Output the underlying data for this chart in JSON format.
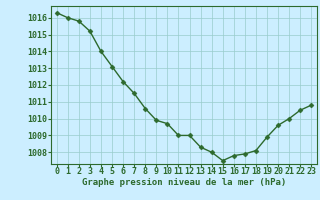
{
  "x": [
    0,
    1,
    2,
    3,
    4,
    5,
    6,
    7,
    8,
    9,
    10,
    11,
    12,
    13,
    14,
    15,
    16,
    17,
    18,
    19,
    20,
    21,
    22,
    23
  ],
  "y": [
    1016.3,
    1016.0,
    1015.8,
    1015.2,
    1014.0,
    1013.1,
    1012.2,
    1011.5,
    1010.6,
    1009.9,
    1009.7,
    1009.0,
    1009.0,
    1008.3,
    1008.0,
    1007.5,
    1007.8,
    1007.9,
    1008.1,
    1008.9,
    1009.6,
    1010.0,
    1010.5,
    1010.8
  ],
  "line_color": "#2d6a2d",
  "marker_color": "#2d6a2d",
  "bg_color": "#cceeff",
  "grid_color": "#99cccc",
  "xlabel": "Graphe pression niveau de la mer (hPa)",
  "xlabel_color": "#2d6a2d",
  "tick_color": "#2d6a2d",
  "spine_color": "#2d6a2d",
  "ylim": [
    1007.3,
    1016.7
  ],
  "yticks": [
    1008,
    1009,
    1010,
    1011,
    1012,
    1013,
    1014,
    1015,
    1016
  ],
  "xticks": [
    0,
    1,
    2,
    3,
    4,
    5,
    6,
    7,
    8,
    9,
    10,
    11,
    12,
    13,
    14,
    15,
    16,
    17,
    18,
    19,
    20,
    21,
    22,
    23
  ],
  "font_size": 6.0,
  "label_fontsize": 6.5,
  "line_width": 1.0,
  "marker_size": 2.5
}
